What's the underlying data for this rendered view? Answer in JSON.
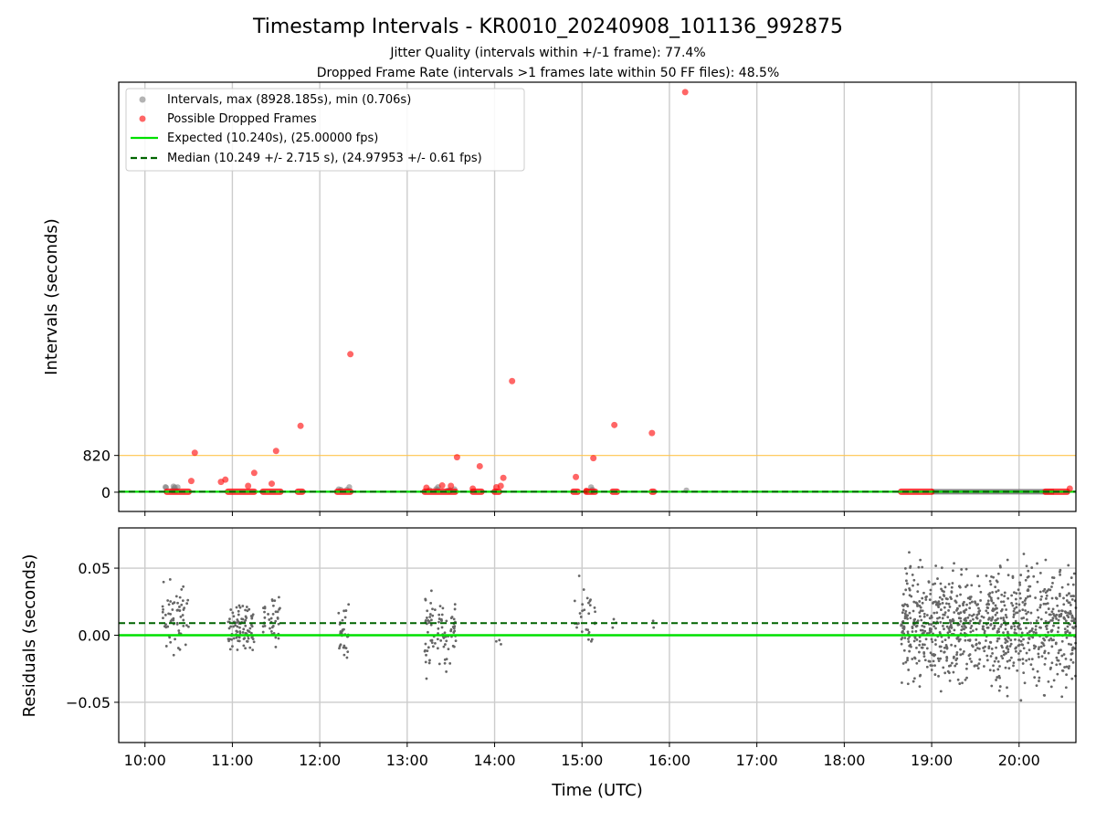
{
  "chart_data": {
    "type": "scatter",
    "title": "Timestamp Intervals - KR0010_20240908_101136_992875",
    "subtitle_lines": [
      "Jitter Quality (intervals within +/-1 frame): 77.4%",
      "Dropped Frame Rate (intervals >1 frames late within 50 FF files): 48.5%"
    ],
    "xlabel": "Time (UTC)",
    "x_tick_labels": [
      "10:00",
      "11:00",
      "12:00",
      "13:00",
      "14:00",
      "15:00",
      "16:00",
      "17:00",
      "18:00",
      "19:00",
      "20:00"
    ],
    "x_range_hours": [
      9.7,
      20.65
    ],
    "top_panel": {
      "ylabel": "Intervals (seconds)",
      "y_tick_labels": [
        "0",
        "820"
      ],
      "y_ticks": [
        0,
        820
      ],
      "ylim": [
        -430,
        9150
      ],
      "threshold_line": {
        "value": 820,
        "color": "#ffc44d"
      },
      "legend": {
        "placement": "upper-left",
        "entries": [
          "Intervals, max (8928.185s), min (0.706s)",
          "Possible Dropped Frames",
          "Expected (10.240s), (25.00000 fps)",
          "Median (10.249 +/- 2.715 s), (24.97953 +/- 0.61 fps)"
        ]
      },
      "colors": {
        "intervals": "#808080",
        "dropped": "#ff0000",
        "expected": "#00e000",
        "median": "#006400"
      },
      "dropped_points": [
        [
          10.53,
          250
        ],
        [
          10.57,
          880
        ],
        [
          10.87,
          230
        ],
        [
          10.92,
          280
        ],
        [
          11.18,
          140
        ],
        [
          11.25,
          430
        ],
        [
          11.45,
          190
        ],
        [
          11.5,
          920
        ],
        [
          11.78,
          1480
        ],
        [
          12.35,
          3080
        ],
        [
          13.22,
          100
        ],
        [
          13.4,
          150
        ],
        [
          13.5,
          140
        ],
        [
          13.57,
          780
        ],
        [
          13.75,
          80
        ],
        [
          13.83,
          580
        ],
        [
          14.02,
          110
        ],
        [
          14.07,
          140
        ],
        [
          14.1,
          320
        ],
        [
          14.2,
          2480
        ],
        [
          14.93,
          340
        ],
        [
          15.05,
          30
        ],
        [
          15.13,
          760
        ],
        [
          15.37,
          1500
        ],
        [
          15.8,
          1320
        ],
        [
          16.18,
          8928
        ],
        [
          20.58,
          80
        ]
      ],
      "zero_interval_segments": [
        [
          10.25,
          10.5
        ],
        [
          10.95,
          11.25
        ],
        [
          11.35,
          11.55
        ],
        [
          11.75,
          11.8
        ],
        [
          12.2,
          12.35
        ],
        [
          13.2,
          13.55
        ],
        [
          13.75,
          13.85
        ],
        [
          14.0,
          14.05
        ],
        [
          14.9,
          14.95
        ],
        [
          15.05,
          15.15
        ],
        [
          15.35,
          15.4
        ],
        [
          15.8,
          15.82
        ],
        [
          18.65,
          19.0
        ],
        [
          20.3,
          20.55
        ]
      ],
      "gray_segment": [
        19.0,
        20.4
      ]
    },
    "bottom_panel": {
      "ylabel": "Residuals (seconds)",
      "y_tick_labels": [
        "0.05",
        "0.00",
        "−0.05"
      ],
      "y_ticks": [
        0.05,
        0,
        -0.05
      ],
      "ylim": [
        -0.08,
        0.08
      ],
      "expected_residual": 0,
      "median_residual": 0.009,
      "point_clusters": [
        [
          10.2,
          10.5,
          60,
          -0.025,
          0.05
        ],
        [
          10.95,
          11.25,
          90,
          -0.02,
          0.03
        ],
        [
          11.35,
          11.55,
          40,
          -0.01,
          0.037
        ],
        [
          12.2,
          12.33,
          30,
          -0.024,
          0.028
        ],
        [
          13.2,
          13.57,
          90,
          -0.04,
          0.046
        ],
        [
          14.0,
          14.1,
          3,
          -0.013,
          0.0
        ],
        [
          14.9,
          15.15,
          30,
          -0.025,
          0.052
        ],
        [
          15.35,
          15.4,
          3,
          0.0,
          0.02
        ],
        [
          15.8,
          15.82,
          2,
          0.0,
          0.02
        ],
        [
          18.65,
          20.65,
          950,
          -0.055,
          0.068
        ]
      ]
    }
  }
}
